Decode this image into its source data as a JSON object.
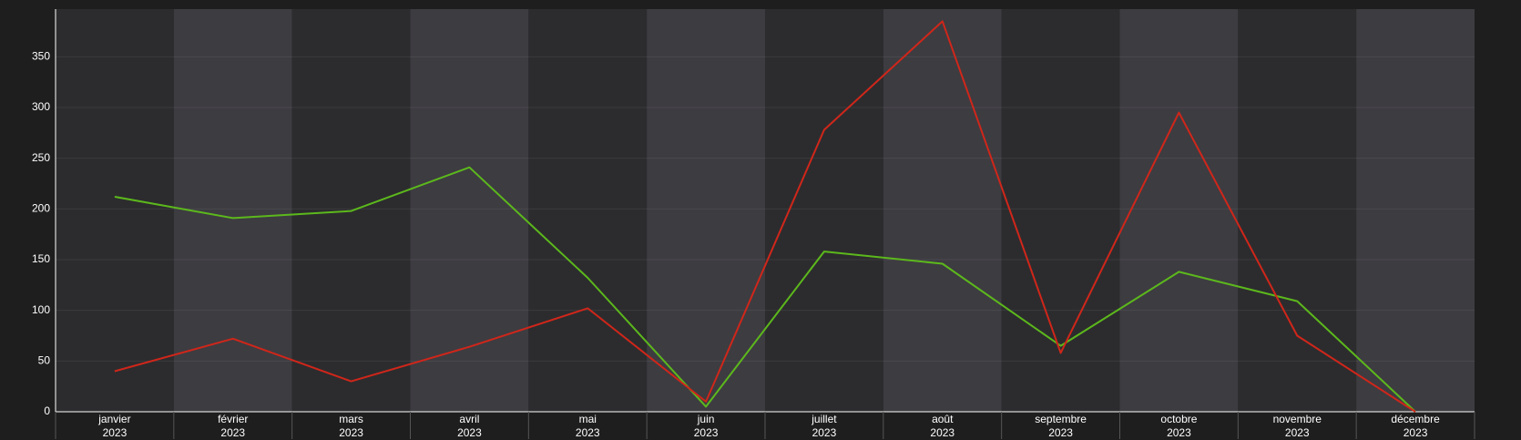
{
  "chart_data": {
    "type": "line",
    "categories": [
      [
        "janvier",
        "2023"
      ],
      [
        "février",
        "2023"
      ],
      [
        "mars",
        "2023"
      ],
      [
        "avril",
        "2023"
      ],
      [
        "mai",
        "2023"
      ],
      [
        "juin",
        "2023"
      ],
      [
        "juillet",
        "2023"
      ],
      [
        "août",
        "2023"
      ],
      [
        "septembre",
        "2023"
      ],
      [
        "octobre",
        "2023"
      ],
      [
        "novembre",
        "2023"
      ],
      [
        "décembre",
        "2023"
      ]
    ],
    "series": [
      {
        "color": "#5cb81c",
        "values": [
          212,
          191,
          198,
          241,
          132,
          5,
          158,
          146,
          65,
          138,
          109,
          0
        ]
      },
      {
        "color": "#d0261a",
        "values": [
          40,
          72,
          30,
          64,
          102,
          10,
          278,
          385,
          58,
          295,
          75,
          0
        ]
      }
    ],
    "ylim": [
      0,
      397
    ],
    "yticks": [
      0,
      50,
      100,
      150,
      200,
      250,
      300,
      350
    ],
    "grid": true,
    "band_colors": [
      "#2c2c2e",
      "#3d3c41"
    ]
  }
}
